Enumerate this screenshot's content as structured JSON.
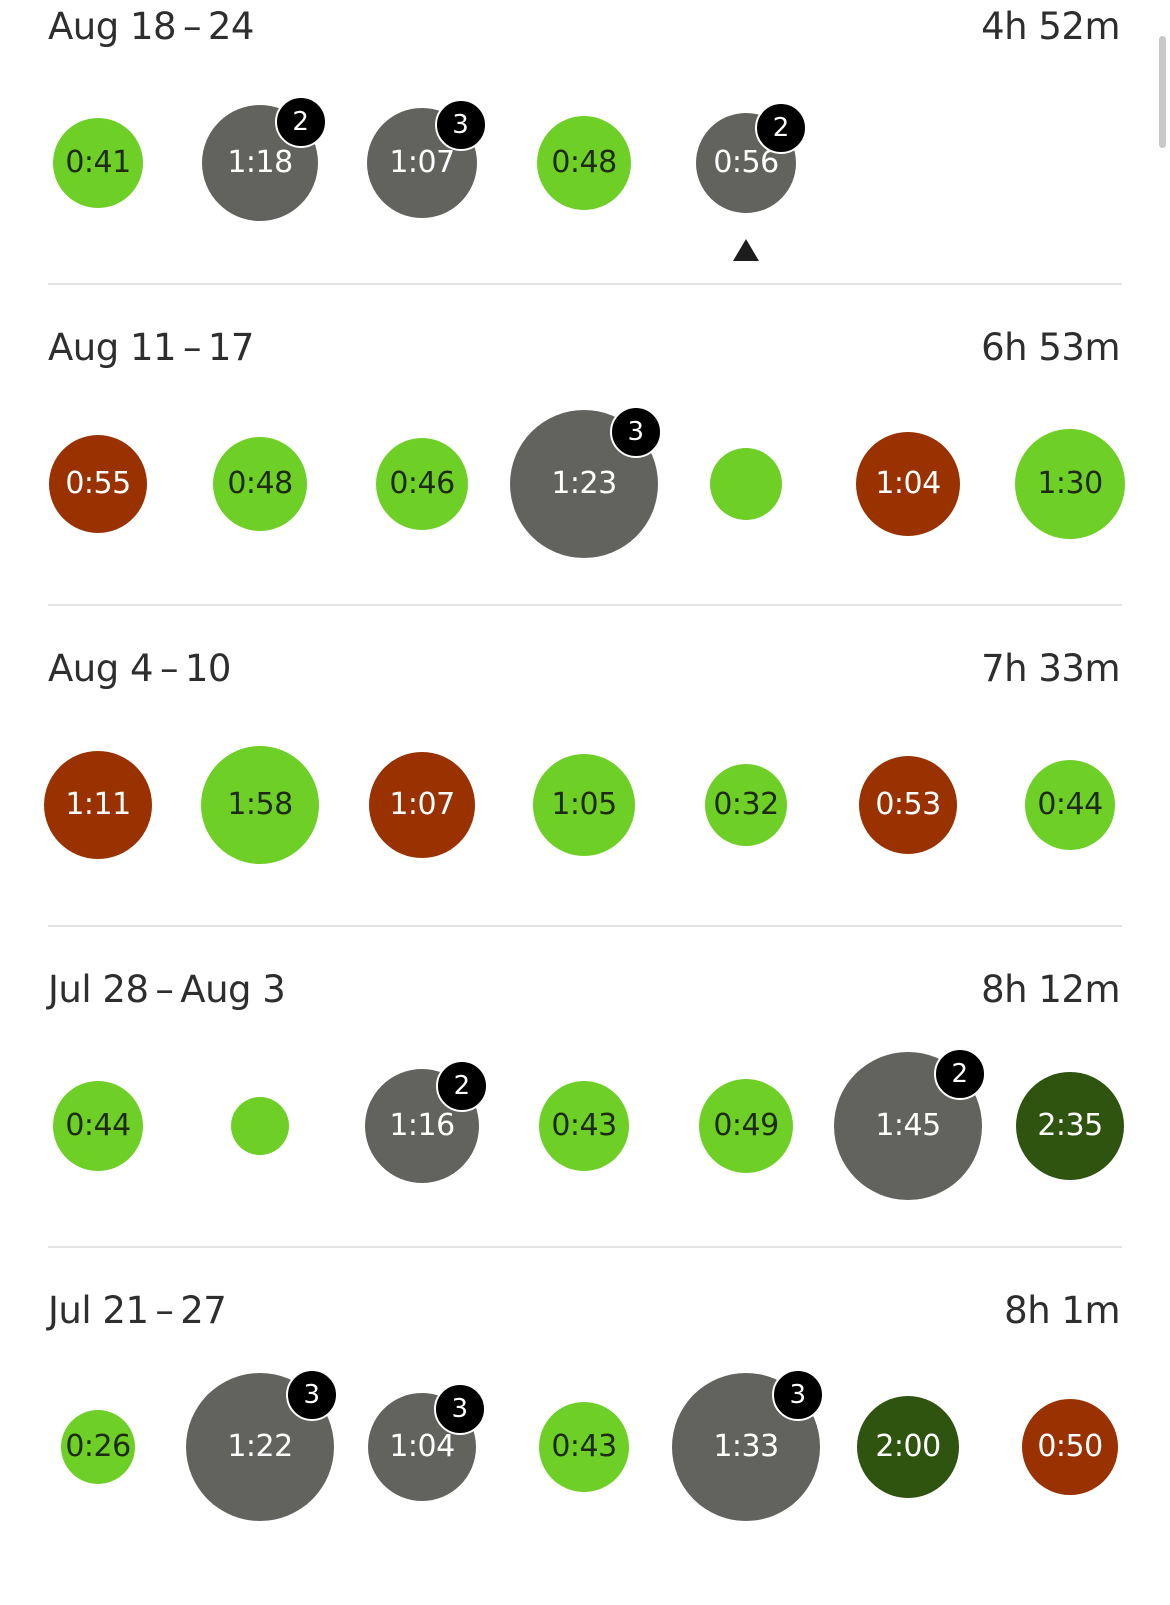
{
  "colors": {
    "target_met": "#6ecf26",
    "multiple": "#62625e",
    "below_target": "#993200",
    "high": "#2e5410",
    "badge": "#000000"
  },
  "weeks": [
    {
      "label": "Aug 18 – 24",
      "total": "4h 52m",
      "days": [
        {
          "time": "0:41",
          "kind": "g",
          "size": 90
        },
        {
          "time": "1:18",
          "kind": "d",
          "size": 116,
          "badge": "2"
        },
        {
          "time": "1:07",
          "kind": "d",
          "size": 110,
          "badge": "3"
        },
        {
          "time": "0:48",
          "kind": "g",
          "size": 94
        },
        {
          "time": "0:56",
          "kind": "d",
          "size": 100,
          "badge": "2",
          "selected": true
        }
      ]
    },
    {
      "label": "Aug 11 – 17",
      "total": "6h 53m",
      "days": [
        {
          "time": "0:55",
          "kind": "r",
          "size": 98
        },
        {
          "time": "0:48",
          "kind": "g",
          "size": 94
        },
        {
          "time": "0:46",
          "kind": "g",
          "size": 92
        },
        {
          "time": "1:23",
          "kind": "d",
          "size": 148,
          "badge": "3"
        },
        {
          "time": "",
          "kind": "g",
          "size": 72
        },
        {
          "time": "1:04",
          "kind": "r",
          "size": 104
        },
        {
          "time": "1:30",
          "kind": "g",
          "size": 110
        }
      ]
    },
    {
      "label": "Aug 4 – 10",
      "total": "7h 33m",
      "days": [
        {
          "time": "1:11",
          "kind": "r",
          "size": 108
        },
        {
          "time": "1:58",
          "kind": "g",
          "size": 118
        },
        {
          "time": "1:07",
          "kind": "r",
          "size": 106
        },
        {
          "time": "1:05",
          "kind": "g",
          "size": 102
        },
        {
          "time": "0:32",
          "kind": "g",
          "size": 82
        },
        {
          "time": "0:53",
          "kind": "r",
          "size": 98
        },
        {
          "time": "0:44",
          "kind": "g",
          "size": 90
        }
      ]
    },
    {
      "label": "Jul 28 – Aug 3",
      "total": "8h 12m",
      "days": [
        {
          "time": "0:44",
          "kind": "g",
          "size": 90
        },
        {
          "time": "",
          "kind": "g",
          "size": 58
        },
        {
          "time": "1:16",
          "kind": "d",
          "size": 114,
          "badge": "2"
        },
        {
          "time": "0:43",
          "kind": "g",
          "size": 90
        },
        {
          "time": "0:49",
          "kind": "g",
          "size": 94
        },
        {
          "time": "1:45",
          "kind": "d",
          "size": 148,
          "badge": "2"
        },
        {
          "time": "2:35",
          "kind": "f",
          "size": 108
        }
      ]
    },
    {
      "label": "Jul 21 – 27",
      "total": "8h  1m",
      "days": [
        {
          "time": "0:26",
          "kind": "g",
          "size": 74
        },
        {
          "time": "1:22",
          "kind": "d",
          "size": 148,
          "badge": "3"
        },
        {
          "time": "1:04",
          "kind": "d",
          "size": 108,
          "badge": "3"
        },
        {
          "time": "0:43",
          "kind": "g",
          "size": 90
        },
        {
          "time": "1:33",
          "kind": "d",
          "size": 148,
          "badge": "3"
        },
        {
          "time": "2:00",
          "kind": "f",
          "size": 102
        },
        {
          "time": "0:50",
          "kind": "r",
          "size": 96
        }
      ]
    }
  ]
}
